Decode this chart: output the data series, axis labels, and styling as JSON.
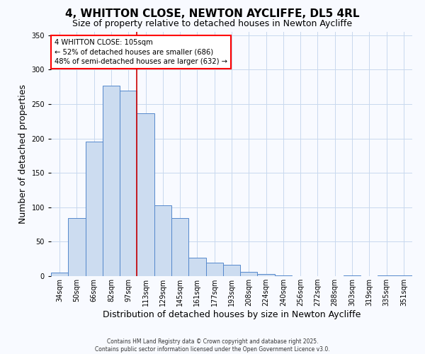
{
  "title": "4, WHITTON CLOSE, NEWTON AYCLIFFE, DL5 4RL",
  "subtitle": "Size of property relative to detached houses in Newton Aycliffe",
  "xlabel": "Distribution of detached houses by size in Newton Aycliffe",
  "ylabel": "Number of detached properties",
  "bar_labels": [
    "34sqm",
    "50sqm",
    "66sqm",
    "82sqm",
    "97sqm",
    "113sqm",
    "129sqm",
    "145sqm",
    "161sqm",
    "177sqm",
    "193sqm",
    "208sqm",
    "224sqm",
    "240sqm",
    "256sqm",
    "272sqm",
    "288sqm",
    "303sqm",
    "319sqm",
    "335sqm",
    "351sqm"
  ],
  "bar_values": [
    5,
    84,
    196,
    277,
    270,
    237,
    103,
    84,
    27,
    20,
    16,
    6,
    3,
    1,
    0,
    0,
    0,
    1,
    0,
    1,
    1
  ],
  "bar_color": "#ccdcf0",
  "bar_edge_color": "#5588cc",
  "vline_color": "#cc0000",
  "vline_pos": 4.5,
  "ylim": [
    0,
    355
  ],
  "yticks": [
    0,
    50,
    100,
    150,
    200,
    250,
    300,
    350
  ],
  "annotation_title": "4 WHITTON CLOSE: 105sqm",
  "annotation_line1": "← 52% of detached houses are smaller (686)",
  "annotation_line2": "48% of semi-detached houses are larger (632) →",
  "footer_line1": "Contains HM Land Registry data © Crown copyright and database right 2025.",
  "footer_line2": "Contains public sector information licensed under the Open Government Licence v3.0.",
  "background_color": "#f8faff",
  "grid_color": "#c8d8ee",
  "title_fontsize": 11,
  "subtitle_fontsize": 9,
  "xlabel_fontsize": 9,
  "ylabel_fontsize": 9,
  "tick_fontsize": 7,
  "footer_fontsize": 5.5
}
